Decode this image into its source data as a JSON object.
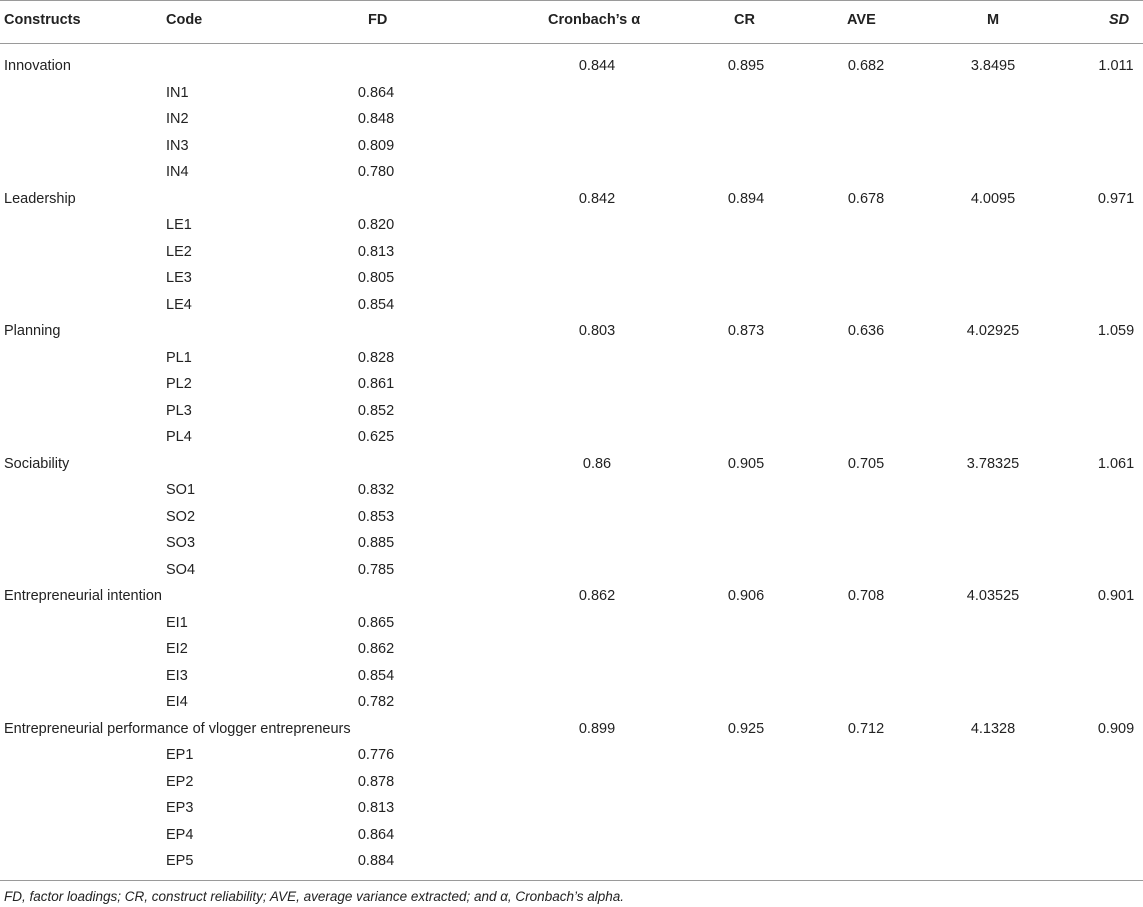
{
  "headers": {
    "constructs": "Constructs",
    "code": "Code",
    "fd": "FD",
    "alpha": "Cronbach’s α",
    "cr": "CR",
    "ave": "AVE",
    "m": "M",
    "sd": "SD"
  },
  "groups": [
    {
      "name": "Innovation",
      "alpha": "0.844",
      "cr": "0.895",
      "ave": "0.682",
      "m": "3.8495",
      "sd": "1.011",
      "items": [
        {
          "code": "IN1",
          "fd": "0.864"
        },
        {
          "code": "IN2",
          "fd": "0.848"
        },
        {
          "code": "IN3",
          "fd": "0.809"
        },
        {
          "code": "IN4",
          "fd": "0.780"
        }
      ]
    },
    {
      "name": "Leadership",
      "alpha": "0.842",
      "cr": "0.894",
      "ave": "0.678",
      "m": "4.0095",
      "sd": "0.971",
      "items": [
        {
          "code": "LE1",
          "fd": "0.820"
        },
        {
          "code": "LE2",
          "fd": "0.813"
        },
        {
          "code": "LE3",
          "fd": "0.805"
        },
        {
          "code": "LE4",
          "fd": "0.854"
        }
      ]
    },
    {
      "name": "Planning",
      "alpha": "0.803",
      "cr": "0.873",
      "ave": "0.636",
      "m": "4.02925",
      "sd": "1.059",
      "items": [
        {
          "code": "PL1",
          "fd": "0.828"
        },
        {
          "code": "PL2",
          "fd": "0.861"
        },
        {
          "code": "PL3",
          "fd": "0.852"
        },
        {
          "code": "PL4",
          "fd": "0.625"
        }
      ]
    },
    {
      "name": "Sociability",
      "alpha": "0.86",
      "cr": "0.905",
      "ave": "0.705",
      "m": "3.78325",
      "sd": "1.061",
      "items": [
        {
          "code": "SO1",
          "fd": "0.832"
        },
        {
          "code": "SO2",
          "fd": "0.853"
        },
        {
          "code": "SO3",
          "fd": "0.885"
        },
        {
          "code": "SO4",
          "fd": "0.785"
        }
      ]
    },
    {
      "name": "Entrepreneurial intention",
      "alpha": "0.862",
      "cr": "0.906",
      "ave": "0.708",
      "m": "4.03525",
      "sd": "0.901",
      "items": [
        {
          "code": "EI1",
          "fd": "0.865"
        },
        {
          "code": "EI2",
          "fd": "0.862"
        },
        {
          "code": "EI3",
          "fd": "0.854"
        },
        {
          "code": "EI4",
          "fd": "0.782"
        }
      ]
    },
    {
      "name": "Entrepreneurial performance of vlogger entrepreneurs",
      "alpha": "0.899",
      "cr": "0.925",
      "ave": "0.712",
      "m": "4.1328",
      "sd": "0.909",
      "items": [
        {
          "code": "EP1",
          "fd": "0.776"
        },
        {
          "code": "EP2",
          "fd": "0.878"
        },
        {
          "code": "EP3",
          "fd": "0.813"
        },
        {
          "code": "EP4",
          "fd": "0.864"
        },
        {
          "code": "EP5",
          "fd": "0.884"
        }
      ]
    }
  ],
  "footnote": "FD, factor loadings; CR, construct reliability; AVE, average variance extracted; and α, Cronbach’s alpha."
}
